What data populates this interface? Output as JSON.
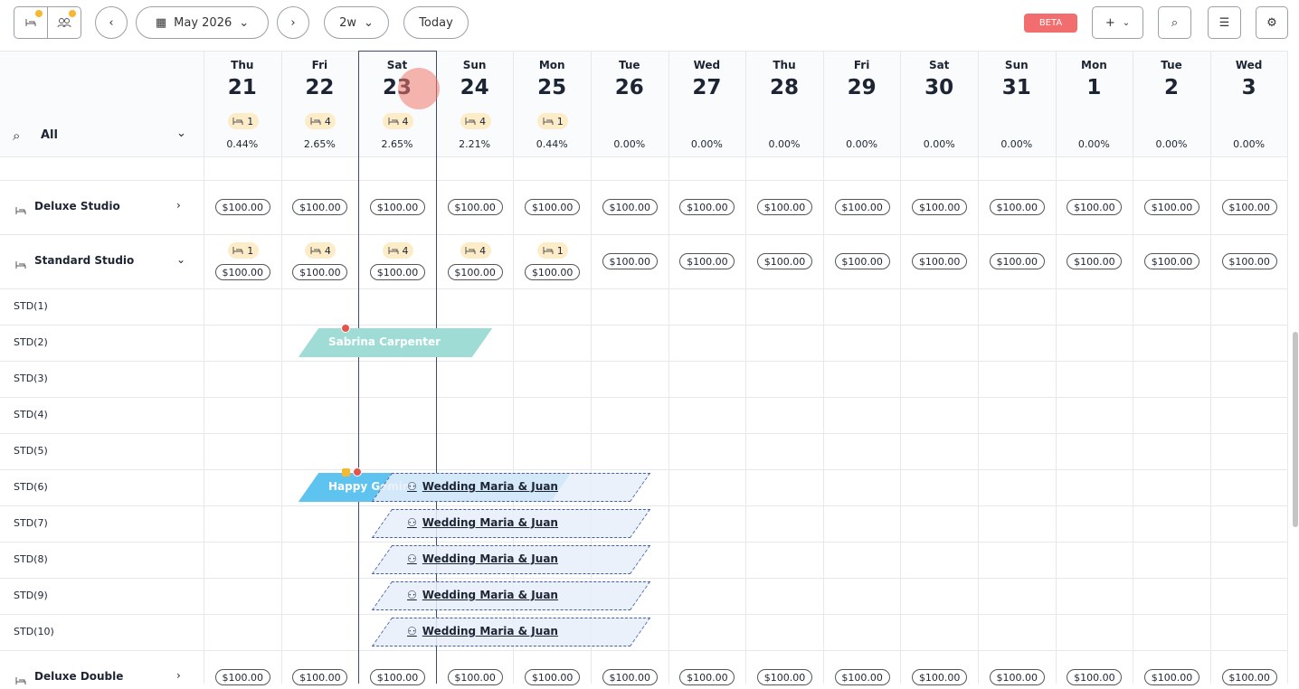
{
  "toolbar": {
    "month": "May 2026",
    "view": "2w",
    "today": "Today",
    "beta": "BETA"
  },
  "filter": {
    "label": "All"
  },
  "days": [
    {
      "dow": "Thu",
      "day": "21",
      "badge": "1",
      "pct": "0.44%"
    },
    {
      "dow": "Fri",
      "day": "22",
      "badge": "4",
      "pct": "2.65%"
    },
    {
      "dow": "Sat",
      "day": "23",
      "badge": "4",
      "pct": "2.65%"
    },
    {
      "dow": "Sun",
      "day": "24",
      "badge": "4",
      "pct": "2.21%"
    },
    {
      "dow": "Mon",
      "day": "25",
      "badge": "1",
      "pct": "0.44%"
    },
    {
      "dow": "Tue",
      "day": "26",
      "badge": null,
      "pct": "0.00%"
    },
    {
      "dow": "Wed",
      "day": "27",
      "badge": null,
      "pct": "0.00%"
    },
    {
      "dow": "Thu",
      "day": "28",
      "badge": null,
      "pct": "0.00%"
    },
    {
      "dow": "Fri",
      "day": "29",
      "badge": null,
      "pct": "0.00%"
    },
    {
      "dow": "Sat",
      "day": "30",
      "badge": null,
      "pct": "0.00%"
    },
    {
      "dow": "Sun",
      "day": "31",
      "badge": null,
      "pct": "0.00%"
    },
    {
      "dow": "Mon",
      "day": "1",
      "badge": null,
      "pct": "0.00%"
    },
    {
      "dow": "Tue",
      "day": "2",
      "badge": null,
      "pct": "0.00%"
    },
    {
      "dow": "Wed",
      "day": "3",
      "badge": null,
      "pct": "0.00%"
    }
  ],
  "room_types": [
    {
      "name": "Deluxe Studio",
      "badges": [
        null,
        null,
        null,
        null,
        null,
        null,
        null,
        null,
        null,
        null,
        null,
        null,
        null,
        null
      ],
      "prices": [
        "$100.00",
        "$100.00",
        "$100.00",
        "$100.00",
        "$100.00",
        "$100.00",
        "$100.00",
        "$100.00",
        "$100.00",
        "$100.00",
        "$100.00",
        "$100.00",
        "$100.00",
        "$100.00"
      ]
    },
    {
      "name": "Standard Studio",
      "badges": [
        "1",
        "4",
        "4",
        "4",
        "1",
        null,
        null,
        null,
        null,
        null,
        null,
        null,
        null,
        null
      ],
      "prices": [
        "$100.00",
        "$100.00",
        "$100.00",
        "$100.00",
        "$100.00",
        "$100.00",
        "$100.00",
        "$100.00",
        "$100.00",
        "$100.00",
        "$100.00",
        "$100.00",
        "$100.00",
        "$100.00"
      ]
    },
    {
      "name": "Deluxe Double",
      "badges": [
        null,
        null,
        null,
        null,
        null,
        null,
        null,
        null,
        null,
        null,
        null,
        null,
        null,
        null
      ],
      "prices": [
        "$100.00",
        "$100.00",
        "$100.00",
        "$100.00",
        "$100.00",
        "$100.00",
        "$100.00",
        "$100.00",
        "$100.00",
        "$100.00",
        "$100.00",
        "$100.00",
        "$100.00",
        "$100.00"
      ]
    }
  ],
  "units": [
    "STD(1)",
    "STD(2)",
    "STD(3)",
    "STD(4)",
    "STD(5)",
    "STD(6)",
    "STD(7)",
    "STD(8)",
    "STD(9)",
    "STD(10)"
  ],
  "bookings": [
    "Sabrina Carpenter",
    "Happy Gemini",
    "Wedding Maria & Juan",
    "Wedding Maria & Juan",
    "Wedding Maria & Juan",
    "Wedding Maria & Juan",
    "Wedding Maria & Juan"
  ]
}
